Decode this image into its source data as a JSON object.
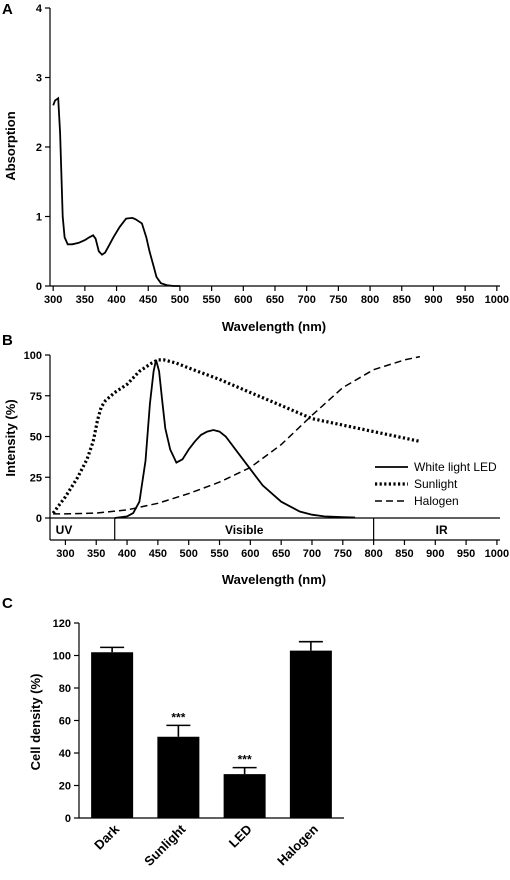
{
  "chart_data": [
    {
      "panel": "A",
      "type": "line",
      "xlabel": "Wavelength (nm)",
      "ylabel": "Absorption",
      "xlim": [
        295,
        1005
      ],
      "ylim": [
        0,
        4
      ],
      "xticks": [
        300,
        350,
        400,
        450,
        500,
        550,
        600,
        650,
        700,
        750,
        800,
        850,
        900,
        950,
        1000
      ],
      "yticks": [
        0,
        1,
        2,
        3,
        4
      ],
      "grid": false,
      "series": [
        {
          "x": [
            300,
            303,
            308,
            311,
            315,
            318,
            323,
            330,
            340,
            350,
            357,
            363,
            367,
            372,
            377,
            382,
            388,
            395,
            405,
            415,
            425,
            430,
            440,
            447,
            452,
            458,
            463,
            470,
            480,
            490,
            500
          ],
          "y": [
            2.6,
            2.67,
            2.7,
            2.2,
            1.0,
            0.7,
            0.6,
            0.6,
            0.62,
            0.66,
            0.7,
            0.73,
            0.68,
            0.5,
            0.45,
            0.48,
            0.58,
            0.7,
            0.85,
            0.97,
            0.98,
            0.96,
            0.9,
            0.7,
            0.5,
            0.3,
            0.13,
            0.04,
            0.01,
            0.0,
            0.0
          ]
        }
      ]
    },
    {
      "panel": "B",
      "type": "line",
      "xlabel": "Wavelength (nm)",
      "ylabel": "Intensity (%)",
      "xlim": [
        275,
        1005
      ],
      "ylim": [
        0,
        100
      ],
      "xticks": [
        300,
        350,
        400,
        450,
        500,
        550,
        600,
        650,
        700,
        750,
        800,
        850,
        900,
        950,
        1000
      ],
      "yticks": [
        0,
        25,
        50,
        75,
        100
      ],
      "grid": false,
      "legend_position": "right",
      "bands": [
        {
          "label": "UV",
          "from": 275,
          "to": 380
        },
        {
          "label": "Visible",
          "from": 380,
          "to": 800
        },
        {
          "label": "IR",
          "from": 800,
          "to": 1005
        }
      ],
      "series": [
        {
          "name": "White light LED",
          "style": "solid",
          "x": [
            380,
            400,
            410,
            420,
            430,
            437,
            443,
            447,
            452,
            457,
            462,
            470,
            480,
            490,
            500,
            510,
            520,
            530,
            540,
            550,
            560,
            570,
            580,
            600,
            620,
            650,
            680,
            700,
            720,
            750,
            770
          ],
          "y": [
            0,
            1,
            3,
            10,
            35,
            70,
            90,
            97,
            90,
            72,
            55,
            42,
            34,
            36,
            42,
            47,
            51,
            53,
            54,
            53,
            50,
            45,
            40,
            30,
            20,
            10,
            4,
            2,
            1,
            0.5,
            0.3
          ]
        },
        {
          "name": "Sunlight",
          "style": "dotted",
          "x": [
            280,
            300,
            320,
            335,
            345,
            352,
            358,
            365,
            380,
            400,
            420,
            440,
            450,
            460,
            480,
            500,
            550,
            600,
            650,
            700,
            750,
            800,
            850,
            875
          ],
          "y": [
            3,
            13,
            25,
            36,
            47,
            60,
            68,
            72,
            77,
            82,
            90,
            95,
            97,
            97,
            95,
            92,
            85,
            77,
            69,
            61,
            57,
            53,
            49,
            47
          ]
        },
        {
          "name": "Halogen",
          "style": "dashed",
          "x": [
            280,
            300,
            350,
            400,
            450,
            500,
            550,
            600,
            650,
            700,
            750,
            800,
            850,
            875
          ],
          "y": [
            2.5,
            2.5,
            3,
            5,
            9,
            15,
            22,
            31,
            45,
            63,
            80,
            91,
            97,
            99
          ]
        }
      ]
    },
    {
      "panel": "C",
      "type": "bar",
      "ylabel": "Cell density (%)",
      "ylim": [
        0,
        120
      ],
      "yticks": [
        0,
        20,
        40,
        60,
        80,
        100,
        120
      ],
      "categories": [
        "Dark",
        "Sunlight",
        "LED",
        "Halogen"
      ],
      "values": [
        102,
        50,
        27,
        103
      ],
      "errors": [
        3,
        7,
        4,
        5.5
      ],
      "annotations": [
        "",
        "***",
        "***",
        ""
      ],
      "grid": false
    }
  ]
}
